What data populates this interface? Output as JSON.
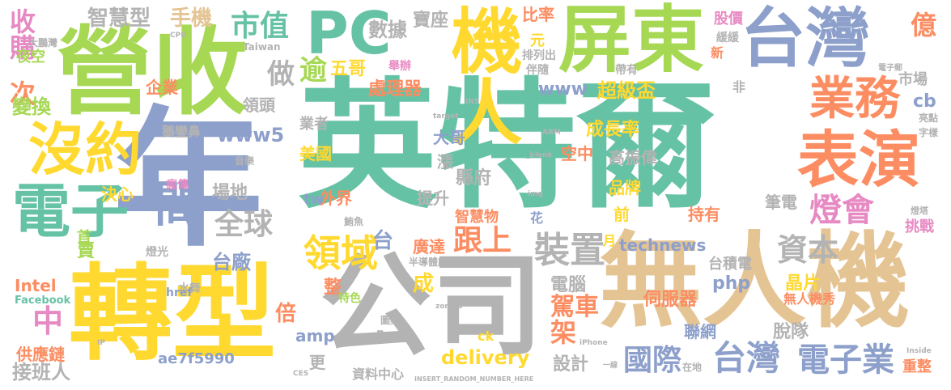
{
  "palette": {
    "teal": "#66c2a5",
    "orange": "#fc8d62",
    "blue": "#8da0cb",
    "pink": "#e78ac3",
    "green": "#a6d854",
    "yellow": "#ffd92f",
    "tan": "#e5c494",
    "gray": "#b3b3b3"
  },
  "words": [
    {
      "text": "英特爾",
      "color": "#66c2a5"
    },
    {
      "text": "年",
      "color": "#8da0cb"
    },
    {
      "text": "營收",
      "color": "#a6d854"
    },
    {
      "text": "轉型",
      "color": "#ffd92f"
    },
    {
      "text": "無人機",
      "color": "#e5c494"
    },
    {
      "text": "公司",
      "color": "#b3b3b3"
    },
    {
      "text": "機人",
      "color": "#ffd92f"
    },
    {
      "text": "屏東",
      "color": "#a6d854"
    },
    {
      "text": "台灣",
      "color": "#8da0cb"
    },
    {
      "text": "PC",
      "color": "#66c2a5"
    },
    {
      "text": "電子",
      "color": "#66c2a5"
    },
    {
      "text": "沒約",
      "color": "#ffd92f"
    },
    {
      "text": "業務",
      "color": "#fc8d62"
    },
    {
      "text": "表演",
      "color": "#fc8d62"
    },
    {
      "text": "間",
      "color": "#8da0cb"
    },
    {
      "text": "領域",
      "color": "#ffd92f"
    },
    {
      "text": "台灣",
      "color": "#8da0cb"
    },
    {
      "text": "電子業",
      "color": "#8da0cb"
    },
    {
      "text": "國際",
      "color": "#8da0cb"
    },
    {
      "text": "資本",
      "color": "#b3b3b3"
    },
    {
      "text": "燈會",
      "color": "#e78ac3"
    },
    {
      "text": "全球",
      "color": "#b3b3b3"
    },
    {
      "text": "跟上",
      "color": "#fc8d62"
    },
    {
      "text": "裝置",
      "color": "#b3b3b3"
    },
    {
      "text": "收購",
      "color": "#e78ac3"
    },
    {
      "text": "智慧型",
      "color": "#b3b3b3"
    },
    {
      "text": "手機",
      "color": "#e5c494"
    },
    {
      "text": "市值",
      "color": "#66c2a5"
    },
    {
      "text": "數據",
      "color": "#b3b3b3"
    },
    {
      "text": "寶座",
      "color": "#b3b3b3"
    },
    {
      "text": "比率",
      "color": "#fc8d62"
    },
    {
      "text": "元",
      "color": "#ffd92f"
    },
    {
      "text": "股價",
      "color": "#e78ac3"
    },
    {
      "text": "緩緩",
      "color": "#b3b3b3"
    },
    {
      "text": "億",
      "color": "#fc8d62"
    },
    {
      "text": "市場",
      "color": "#b3b3b3"
    },
    {
      "text": "cb",
      "color": "#8da0cb"
    },
    {
      "text": "做",
      "color": "#b3b3b3"
    },
    {
      "text": "逾",
      "color": "#a6d854"
    },
    {
      "text": "五哥",
      "color": "#ffd92f"
    },
    {
      "text": "次",
      "color": "#fc8d62"
    },
    {
      "text": "變換",
      "color": "#a6d854"
    },
    {
      "text": "企業",
      "color": "#fc8d62"
    },
    {
      "text": "領頭",
      "color": "#b3b3b3"
    },
    {
      "text": "處理器",
      "color": "#fc8d62"
    },
    {
      "text": "www",
      "color": "#8da0cb"
    },
    {
      "text": "超級盃",
      "color": "#ffd92f"
    },
    {
      "text": "成長率",
      "color": "#ffd92f"
    },
    {
      "text": "大哥",
      "color": "#8da0cb"
    },
    {
      "text": "空中",
      "color": "#fc8d62"
    },
    {
      "text": "高振偉",
      "color": "#b3b3b3"
    },
    {
      "text": "www5",
      "color": "#8da0cb"
    },
    {
      "text": "美國",
      "color": "#ffd92f"
    },
    {
      "text": "業者",
      "color": "#b3b3b3"
    },
    {
      "text": "鵝鑾鼻",
      "color": "#b3b3b3"
    },
    {
      "text": "漲",
      "color": "#b3b3b3"
    },
    {
      "text": "決心",
      "color": "#ffd92f"
    },
    {
      "text": "場地",
      "color": "#b3b3b3"
    },
    {
      "text": "外界",
      "color": "#fc8d62"
    },
    {
      "text": "tw",
      "color": "#8da0cb"
    },
    {
      "text": "提升",
      "color": "#b3b3b3"
    },
    {
      "text": "縣府",
      "color": "#b3b3b3"
    },
    {
      "text": "品牌",
      "color": "#ffd92f"
    },
    {
      "text": "前",
      "color": "#ffd92f"
    },
    {
      "text": "筆電",
      "color": "#b3b3b3"
    },
    {
      "text": "持有",
      "color": "#fc8d62"
    },
    {
      "text": "挑戰",
      "color": "#e78ac3"
    },
    {
      "text": "智慧物",
      "color": "#fc8d62"
    },
    {
      "text": "花",
      "color": "#8da0cb"
    },
    {
      "text": "廣達",
      "color": "#fc8d62"
    },
    {
      "text": "月",
      "color": "#ffd92f"
    },
    {
      "text": "technews",
      "color": "#8da0cb"
    },
    {
      "text": "台積電",
      "color": "#b3b3b3"
    },
    {
      "text": "台廠",
      "color": "#8da0cb"
    },
    {
      "text": "台",
      "color": "#8da0cb"
    },
    {
      "text": "首",
      "color": "#a6d854"
    },
    {
      "text": "賣",
      "color": "#a6d854"
    },
    {
      "text": "瘋傳",
      "color": "#e78ac3"
    },
    {
      "text": "Intel",
      "color": "#fc8d62"
    },
    {
      "text": "中",
      "color": "#e78ac3"
    },
    {
      "text": "倍",
      "color": "#fc8d62"
    },
    {
      "text": "整",
      "color": "#fc8d62"
    },
    {
      "text": "amp",
      "color": "#8da0cb"
    },
    {
      "text": "成",
      "color": "#ffd92f"
    },
    {
      "text": "架",
      "color": "#fc8d62"
    },
    {
      "text": "駕車",
      "color": "#fc8d62"
    },
    {
      "text": "電腦",
      "color": "#b3b3b3"
    },
    {
      "text": "php",
      "color": "#8da0cb"
    },
    {
      "text": "晶片",
      "color": "#ffd92f"
    },
    {
      "text": "伺服器",
      "color": "#fc8d62"
    },
    {
      "text": "無人機秀",
      "color": "#fc8d62"
    },
    {
      "text": "聯網",
      "color": "#8da0cb"
    },
    {
      "text": "脫隊",
      "color": "#b3b3b3"
    },
    {
      "text": "delivery",
      "color": "#ffd92f"
    },
    {
      "text": "設計",
      "color": "#b3b3b3"
    },
    {
      "text": "資料中心",
      "color": "#b3b3b3"
    },
    {
      "text": "更",
      "color": "#b3b3b3"
    },
    {
      "text": "供應鏈",
      "color": "#fc8d62"
    },
    {
      "text": "接班人",
      "color": "#b3b3b3"
    },
    {
      "text": "ae7f5990",
      "color": "#8da0cb"
    },
    {
      "text": "重整",
      "color": "#fc8d62"
    },
    {
      "text": "夜空",
      "color": "#a6d854"
    },
    {
      "text": "非",
      "color": "#b3b3b3"
    },
    {
      "text": "新",
      "color": "#fc8d62"
    },
    {
      "text": "帶有",
      "color": "#b3b3b3"
    },
    {
      "text": "伴隨",
      "color": "#b3b3b3"
    },
    {
      "text": "排列出",
      "color": "#b3b3b3"
    },
    {
      "text": "舉辦",
      "color": "#e78ac3"
    },
    {
      "text": "Facebook",
      "color": "#66c2a5"
    },
    {
      "text": "水舞",
      "color": "#b3b3b3"
    },
    {
      "text": "燈光",
      "color": "#b3b3b3"
    },
    {
      "text": "鮪魚",
      "color": "#b3b3b3"
    },
    {
      "text": "半導體廠",
      "color": "#b3b3b3"
    },
    {
      "text": "特色",
      "color": "#a6d854"
    },
    {
      "text": "圖案",
      "color": "#b3b3b3"
    },
    {
      "text": "href",
      "color": "#8da0cb"
    },
    {
      "text": "音樂",
      "color": "#b3b3b3"
    },
    {
      "text": "大鵬灣",
      "color": "#b3b3b3"
    },
    {
      "text": "Taiwan",
      "color": "#b3b3b3"
    },
    {
      "text": "INSERT_RANDOM_NUMBER_HERE",
      "color": "#b3b3b3"
    },
    {
      "text": "ck",
      "color": "#ffd92f"
    },
    {
      "text": "n",
      "color": "#b3b3b3"
    },
    {
      "text": "字樣",
      "color": "#b3b3b3"
    },
    {
      "text": "亮點",
      "color": "#b3b3b3"
    },
    {
      "text": "燈塔",
      "color": "#b3b3b3"
    },
    {
      "text": "電子郵",
      "color": "#b3b3b3"
    },
    {
      "text": "target",
      "color": "#b3b3b3"
    },
    {
      "text": "_blank",
      "color": "#b3b3b3"
    },
    {
      "text": "ARM",
      "color": "#b3b3b3"
    },
    {
      "text": "CPU",
      "color": "#b3b3b3"
    },
    {
      "text": "INS",
      "color": "#b3b3b3"
    },
    {
      "text": "img",
      "color": "#b3b3b3"
    },
    {
      "text": "IP",
      "color": "#b3b3b3"
    },
    {
      "text": "CES",
      "color": "#b3b3b3"
    },
    {
      "text": "iPhone",
      "color": "#b3b3b3"
    },
    {
      "text": "Inside",
      "color": "#b3b3b3"
    },
    {
      "text": "zoneid",
      "color": "#b3b3b3"
    },
    {
      "text": "在地",
      "color": "#b3b3b3"
    },
    {
      "text": "一線",
      "color": "#b3b3b3"
    }
  ]
}
